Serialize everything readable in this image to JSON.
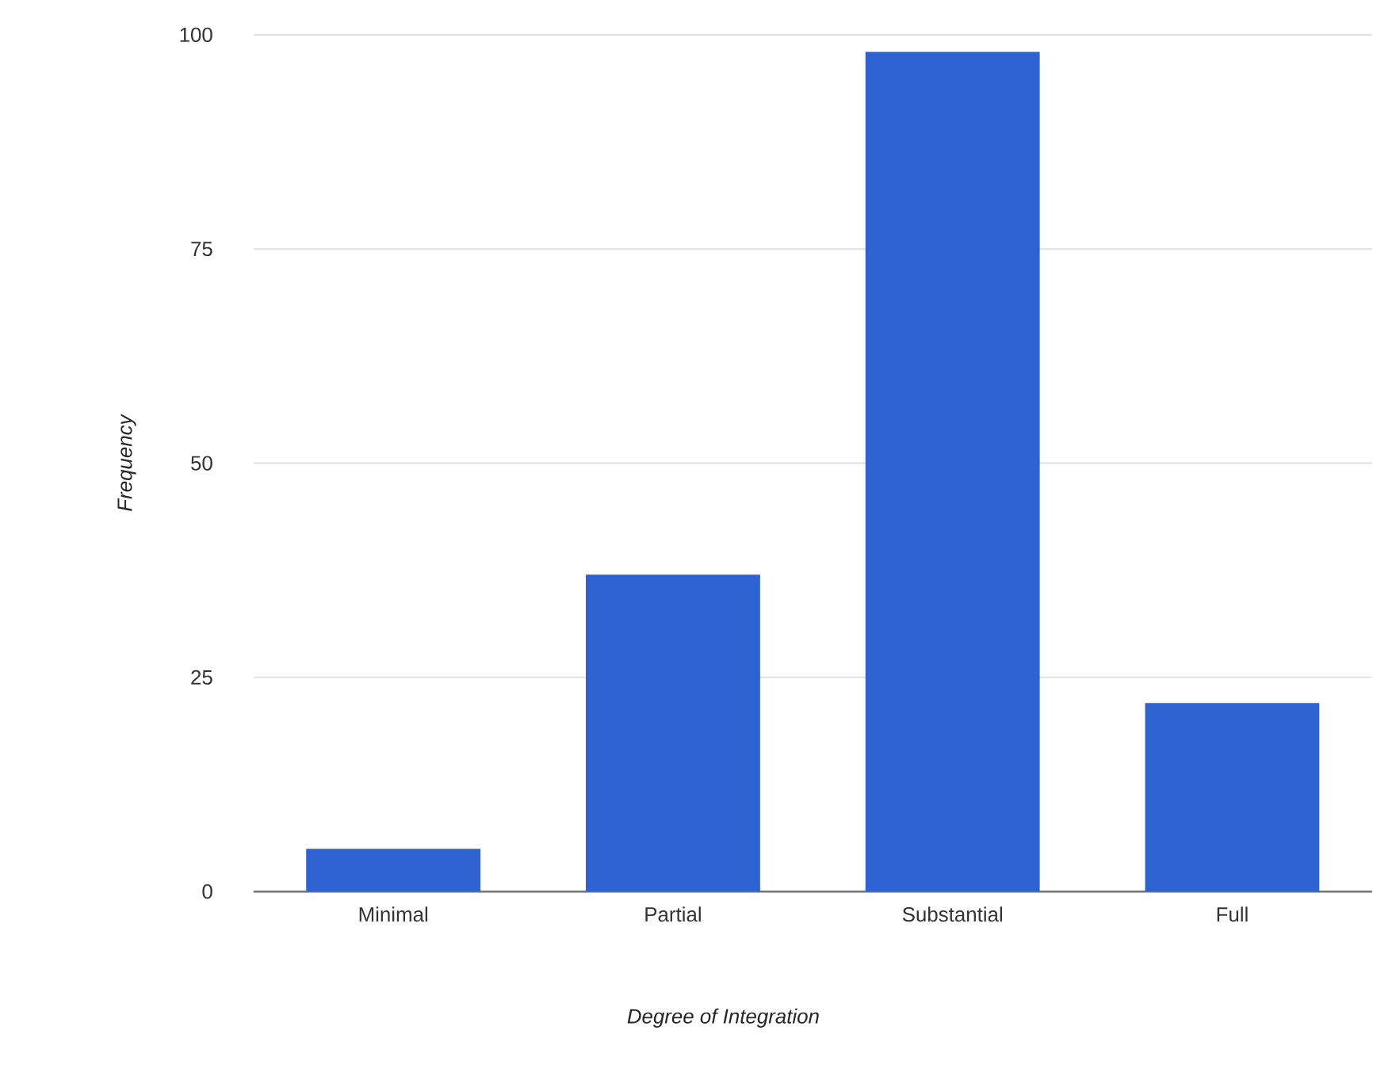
{
  "chart_data": {
    "type": "bar",
    "xlabel": "Degree of Integration",
    "ylabel": "Frequency",
    "categories": [
      "Minimal",
      "Partial",
      "Substantial",
      "Full"
    ],
    "values": [
      5,
      37,
      98,
      22
    ],
    "color": "#2d62d0",
    "ylim": [
      0,
      100
    ],
    "yticks": [
      0,
      25,
      50,
      75,
      100
    ],
    "grid": "y"
  }
}
